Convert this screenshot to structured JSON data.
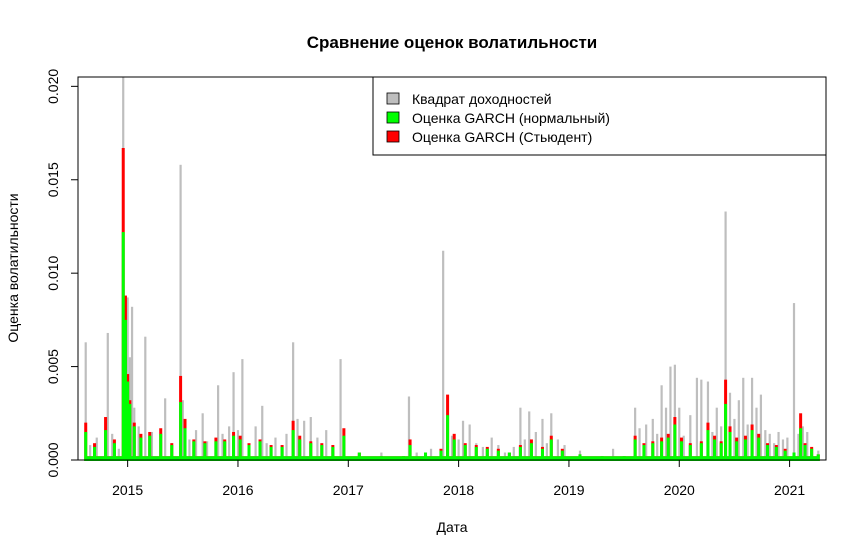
{
  "chart_data": {
    "type": "bar",
    "title": "Сравнение оценок волатильности",
    "xlabel": "Дата",
    "ylabel": "Оценка волатильности",
    "xlim": [
      2014.55,
      2021.33
    ],
    "ylim": [
      0,
      0.0205
    ],
    "x_ticks": [
      {
        "value": 2015,
        "label": "2015"
      },
      {
        "value": 2016,
        "label": "2016"
      },
      {
        "value": 2017,
        "label": "2017"
      },
      {
        "value": 2018,
        "label": "2018"
      },
      {
        "value": 2019,
        "label": "2019"
      },
      {
        "value": 2020,
        "label": "2020"
      },
      {
        "value": 2021,
        "label": "2021"
      }
    ],
    "y_ticks": [
      {
        "value": 0.0,
        "label": "0.000"
      },
      {
        "value": 0.005,
        "label": "0.005"
      },
      {
        "value": 0.01,
        "label": "0.010"
      },
      {
        "value": 0.015,
        "label": "0.015"
      },
      {
        "value": 0.02,
        "label": "0.020"
      }
    ],
    "grid": false,
    "legend": {
      "position": "top-right",
      "entries": [
        {
          "label": "Квадрат доходностей",
          "color": "#bebebe"
        },
        {
          "label": "Оценка GARCH (нормальный)",
          "color": "#00ff00"
        },
        {
          "label": "Оценка GARCH (Стьюдент)",
          "color": "#ff0000"
        }
      ]
    },
    "series": [
      {
        "name": "Квадрат доходностей",
        "color": "#bebebe",
        "x": [
          2014.62,
          2014.66,
          2014.72,
          2014.82,
          2014.86,
          2014.92,
          2014.96,
          2014.98,
          2015.0,
          2015.02,
          2015.04,
          2015.06,
          2015.1,
          2015.16,
          2015.22,
          2015.34,
          2015.4,
          2015.48,
          2015.5,
          2015.56,
          2015.62,
          2015.68,
          2015.72,
          2015.82,
          2015.86,
          2015.92,
          2015.96,
          2016.0,
          2016.04,
          2016.1,
          2016.16,
          2016.22,
          2016.26,
          2016.34,
          2016.44,
          2016.5,
          2016.54,
          2016.6,
          2016.66,
          2016.72,
          2016.8,
          2016.86,
          2016.93,
          2016.96,
          2017.1,
          2017.3,
          2017.55,
          2017.62,
          2017.75,
          2017.86,
          2017.9,
          2017.94,
          2018.0,
          2018.04,
          2018.1,
          2018.16,
          2018.22,
          2018.3,
          2018.36,
          2018.42,
          2018.5,
          2018.56,
          2018.6,
          2018.64,
          2018.7,
          2018.76,
          2018.8,
          2018.84,
          2018.9,
          2018.96,
          2019.1,
          2019.4,
          2019.6,
          2019.64,
          2019.7,
          2019.76,
          2019.8,
          2019.84,
          2019.88,
          2019.92,
          2019.96,
          2020.0,
          2020.04,
          2020.1,
          2020.16,
          2020.2,
          2020.26,
          2020.3,
          2020.34,
          2020.38,
          2020.42,
          2020.46,
          2020.5,
          2020.54,
          2020.58,
          2020.62,
          2020.66,
          2020.7,
          2020.74,
          2020.78,
          2020.82,
          2020.86,
          2020.9,
          2020.94,
          2020.98,
          2021.04,
          2021.08,
          2021.12,
          2021.16,
          2021.2,
          2021.26
        ],
        "values": [
          0.0063,
          0.0008,
          0.0012,
          0.0068,
          0.0014,
          0.0006,
          0.0205,
          0.0088,
          0.0087,
          0.0055,
          0.0082,
          0.0028,
          0.0018,
          0.0066,
          0.0015,
          0.0033,
          0.0009,
          0.0158,
          0.0032,
          0.0011,
          0.0016,
          0.0025,
          0.001,
          0.004,
          0.0014,
          0.0018,
          0.0047,
          0.0016,
          0.0054,
          0.0008,
          0.0018,
          0.0029,
          0.0009,
          0.0012,
          0.0014,
          0.0063,
          0.0022,
          0.0021,
          0.0023,
          0.0012,
          0.0016,
          0.0008,
          0.0054,
          0.0015,
          0.0003,
          0.0004,
          0.0034,
          0.0004,
          0.0006,
          0.0112,
          0.0016,
          0.0013,
          0.0011,
          0.0021,
          0.0019,
          0.0009,
          0.0007,
          0.0012,
          0.0008,
          0.0004,
          0.0007,
          0.0028,
          0.0011,
          0.0026,
          0.0015,
          0.0022,
          0.0009,
          0.0025,
          0.0011,
          0.0008,
          0.0005,
          0.0006,
          0.0028,
          0.0017,
          0.0019,
          0.0022,
          0.0014,
          0.004,
          0.0028,
          0.005,
          0.0051,
          0.0028,
          0.0013,
          0.0024,
          0.0044,
          0.0043,
          0.0042,
          0.0015,
          0.0028,
          0.0018,
          0.0133,
          0.0036,
          0.0022,
          0.0032,
          0.0044,
          0.0019,
          0.0044,
          0.0028,
          0.0035,
          0.0016,
          0.0014,
          0.0009,
          0.0015,
          0.0011,
          0.0012,
          0.0084,
          0.0014,
          0.0018,
          0.0015,
          0.0005,
          0.0005
        ]
      },
      {
        "name": "Оценка GARCH (Стьюдент)",
        "color": "#ff0000",
        "x": [
          2014.62,
          2014.7,
          2014.8,
          2014.88,
          2014.96,
          2014.98,
          2015.0,
          2015.02,
          2015.06,
          2015.12,
          2015.2,
          2015.3,
          2015.4,
          2015.48,
          2015.52,
          2015.6,
          2015.7,
          2015.8,
          2015.88,
          2015.96,
          2016.02,
          2016.1,
          2016.2,
          2016.3,
          2016.4,
          2016.5,
          2016.56,
          2016.66,
          2016.76,
          2016.86,
          2016.96,
          2017.1,
          2017.3,
          2017.5,
          2017.56,
          2017.7,
          2017.84,
          2017.9,
          2017.96,
          2018.06,
          2018.16,
          2018.26,
          2018.36,
          2018.46,
          2018.56,
          2018.66,
          2018.76,
          2018.84,
          2018.94,
          2019.1,
          2019.3,
          2019.5,
          2019.6,
          2019.68,
          2019.76,
          2019.84,
          2019.9,
          2019.96,
          2020.02,
          2020.1,
          2020.2,
          2020.26,
          2020.32,
          2020.38,
          2020.42,
          2020.46,
          2020.52,
          2020.6,
          2020.66,
          2020.72,
          2020.8,
          2020.88,
          2020.96,
          2021.04,
          2021.1,
          2021.14,
          2021.2,
          2021.26
        ],
        "values": [
          0.002,
          0.0009,
          0.0023,
          0.0011,
          0.0167,
          0.0088,
          0.0046,
          0.0032,
          0.002,
          0.0014,
          0.0015,
          0.0017,
          0.0009,
          0.0045,
          0.0022,
          0.0011,
          0.001,
          0.0012,
          0.0011,
          0.0015,
          0.0013,
          0.0009,
          0.0011,
          0.0008,
          0.0008,
          0.0021,
          0.0013,
          0.001,
          0.0009,
          0.0008,
          0.0017,
          0.0004,
          0.0002,
          0.0002,
          0.0011,
          0.0004,
          0.0006,
          0.0035,
          0.0014,
          0.0009,
          0.0008,
          0.0007,
          0.0006,
          0.0004,
          0.0008,
          0.0011,
          0.0007,
          0.0013,
          0.0006,
          0.0003,
          0.0002,
          0.0002,
          0.0013,
          0.0009,
          0.001,
          0.0012,
          0.0014,
          0.0023,
          0.0012,
          0.0009,
          0.001,
          0.002,
          0.0013,
          0.001,
          0.0043,
          0.0018,
          0.0012,
          0.0013,
          0.0019,
          0.0014,
          0.0009,
          0.0008,
          0.0006,
          0.0004,
          0.0025,
          0.0009,
          0.0007,
          0.0003
        ]
      },
      {
        "name": "Оценка GARCH (нормальный)",
        "color": "#00ff00",
        "x": [
          2014.62,
          2014.7,
          2014.8,
          2014.88,
          2014.96,
          2014.98,
          2015.0,
          2015.02,
          2015.06,
          2015.12,
          2015.2,
          2015.3,
          2015.4,
          2015.48,
          2015.52,
          2015.6,
          2015.7,
          2015.8,
          2015.88,
          2015.96,
          2016.02,
          2016.1,
          2016.2,
          2016.3,
          2016.4,
          2016.5,
          2016.56,
          2016.66,
          2016.76,
          2016.86,
          2016.96,
          2017.1,
          2017.3,
          2017.5,
          2017.56,
          2017.7,
          2017.84,
          2017.9,
          2017.96,
          2018.06,
          2018.16,
          2018.26,
          2018.36,
          2018.46,
          2018.56,
          2018.66,
          2018.76,
          2018.84,
          2018.94,
          2019.1,
          2019.3,
          2019.5,
          2019.6,
          2019.68,
          2019.76,
          2019.84,
          2019.9,
          2019.96,
          2020.02,
          2020.1,
          2020.2,
          2020.26,
          2020.32,
          2020.38,
          2020.42,
          2020.46,
          2020.52,
          2020.6,
          2020.66,
          2020.72,
          2020.8,
          2020.88,
          2020.96,
          2021.04,
          2021.1,
          2021.14,
          2021.2,
          2021.26
        ],
        "values": [
          0.0015,
          0.0007,
          0.0016,
          0.0009,
          0.0122,
          0.0075,
          0.0042,
          0.003,
          0.0018,
          0.0012,
          0.0013,
          0.0014,
          0.0008,
          0.0031,
          0.0017,
          0.001,
          0.0009,
          0.001,
          0.001,
          0.0013,
          0.0011,
          0.0008,
          0.001,
          0.0007,
          0.0007,
          0.0016,
          0.0011,
          0.0009,
          0.0008,
          0.0007,
          0.0013,
          0.0004,
          0.0002,
          0.0002,
          0.0008,
          0.0004,
          0.0005,
          0.0024,
          0.0011,
          0.0008,
          0.0007,
          0.0006,
          0.0005,
          0.0004,
          0.0007,
          0.0009,
          0.0006,
          0.0011,
          0.0005,
          0.0003,
          0.0002,
          0.0002,
          0.0011,
          0.0008,
          0.0009,
          0.001,
          0.0012,
          0.0019,
          0.001,
          0.0008,
          0.0009,
          0.0016,
          0.0011,
          0.0009,
          0.003,
          0.0015,
          0.001,
          0.0011,
          0.0016,
          0.0012,
          0.0008,
          0.0007,
          0.0005,
          0.0004,
          0.0017,
          0.0008,
          0.0006,
          0.0003
        ]
      }
    ]
  }
}
